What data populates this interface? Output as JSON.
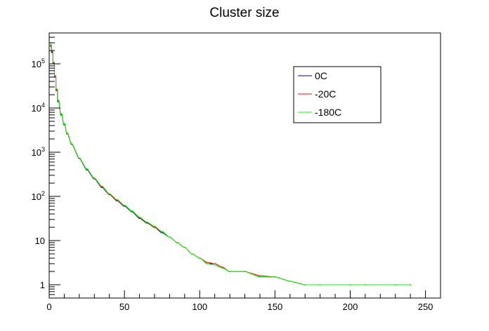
{
  "chart_data": {
    "type": "histogram",
    "title": "Cluster size",
    "xlabel": "",
    "ylabel": "",
    "xlim": [
      0,
      260
    ],
    "ylim": [
      0.5,
      500000
    ],
    "yscale": "log",
    "grid": false,
    "legend_position": "top-right",
    "x_ticks": [
      {
        "value": 0,
        "label": "0"
      },
      {
        "value": 50,
        "label": "50"
      },
      {
        "value": 100,
        "label": "100"
      },
      {
        "value": 150,
        "label": "150"
      },
      {
        "value": 200,
        "label": "200"
      },
      {
        "value": 250,
        "label": "250"
      }
    ],
    "y_ticks": [
      {
        "value": 1,
        "base": "1",
        "exp": ""
      },
      {
        "value": 10,
        "base": "10",
        "exp": ""
      },
      {
        "value": 100,
        "base": "10",
        "exp": "2"
      },
      {
        "value": 1000,
        "base": "10",
        "exp": "3"
      },
      {
        "value": 10000,
        "base": "10",
        "exp": "4"
      },
      {
        "value": 100000,
        "base": "10",
        "exp": "5"
      }
    ],
    "series": [
      {
        "name": "0C",
        "color": "#000080",
        "x": [
          1,
          2,
          3,
          4,
          5,
          6,
          8,
          10,
          12,
          15,
          20,
          25,
          30,
          35,
          40,
          45,
          50,
          55,
          60,
          65,
          70,
          75,
          80,
          85,
          90,
          95,
          100,
          105,
          110,
          115,
          120,
          130,
          140,
          150,
          160,
          170,
          180,
          200,
          210,
          230,
          240
        ],
        "y": [
          250000,
          180000,
          100000,
          50000,
          25000,
          14000,
          7000,
          4200,
          2600,
          1500,
          720,
          400,
          250,
          160,
          110,
          80,
          60,
          45,
          32,
          25,
          20,
          15,
          12,
          9,
          7,
          5,
          4,
          3,
          3,
          2.5,
          2,
          2,
          1.5,
          1.5,
          1.2,
          1,
          1,
          1,
          1,
          1,
          1
        ]
      },
      {
        "name": "-20C",
        "color": "#ff0000",
        "x": [
          1,
          2,
          3,
          4,
          5,
          6,
          8,
          10,
          12,
          15,
          20,
          25,
          30,
          35,
          40,
          45,
          50,
          55,
          60,
          65,
          70,
          75,
          80,
          85,
          90,
          95,
          100,
          105,
          110,
          115,
          120,
          130,
          140,
          150,
          160,
          170,
          180,
          200,
          210,
          230,
          240
        ],
        "y": [
          260000,
          190000,
          105000,
          52000,
          26000,
          14500,
          7200,
          4300,
          2650,
          1520,
          730,
          410,
          255,
          165,
          112,
          82,
          62,
          46,
          33,
          26,
          20,
          16,
          12,
          9,
          7,
          5,
          4,
          3.2,
          3,
          2.5,
          2,
          2,
          1.6,
          1.5,
          1.2,
          1,
          1,
          1,
          1,
          1,
          1
        ]
      },
      {
        "name": "-180C",
        "color": "#00ff00",
        "x": [
          1,
          2,
          3,
          4,
          5,
          6,
          8,
          10,
          12,
          15,
          20,
          25,
          30,
          35,
          40,
          45,
          50,
          55,
          60,
          65,
          70,
          75,
          80,
          85,
          90,
          95,
          100,
          105,
          110,
          115,
          120,
          130,
          140,
          150,
          160,
          170,
          180,
          200,
          210,
          230,
          240
        ],
        "y": [
          280000,
          200000,
          110000,
          55000,
          27000,
          15000,
          7400,
          4400,
          2700,
          1550,
          740,
          420,
          260,
          170,
          115,
          85,
          63,
          47,
          34,
          26,
          21,
          16,
          12,
          9,
          7,
          5,
          4,
          3,
          2.8,
          2.4,
          2,
          2,
          1.5,
          1.5,
          1.2,
          1,
          1,
          1,
          1,
          1,
          1
        ]
      }
    ]
  }
}
